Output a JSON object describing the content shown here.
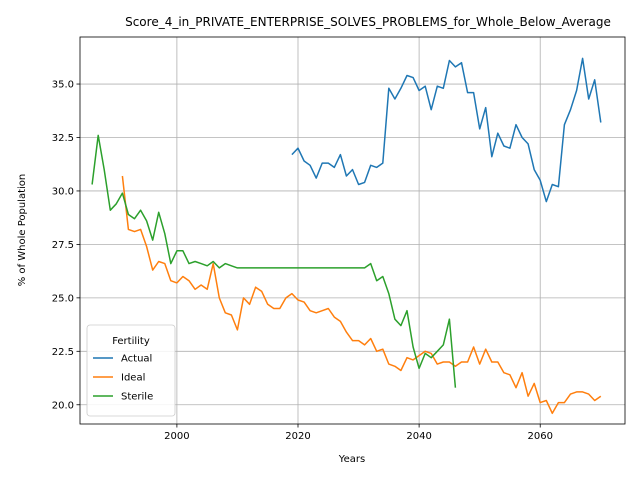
{
  "chart_data": {
    "type": "line",
    "title": "Score_4_in_PRIVATE_ENTERPRISE_SOLVES_PROBLEMS_for_Whole_Below_Average",
    "xlabel": "Years",
    "ylabel": "% of Whole Population",
    "xlim": [
      1984,
      2074
    ],
    "ylim": [
      19.1,
      37.2
    ],
    "xticks": [
      2000,
      2020,
      2040,
      2060
    ],
    "yticks": [
      20.0,
      22.5,
      25.0,
      27.5,
      30.0,
      32.5,
      35.0
    ],
    "grid": true,
    "legend": {
      "title": "Fertility",
      "placement": "lower-left"
    },
    "colors": {
      "Actual": "#1f77b4",
      "Ideal": "#ff7f0e",
      "Sterile": "#2ca02c"
    },
    "series": [
      {
        "name": "Actual",
        "x": [
          2019,
          2020,
          2021,
          2022,
          2023,
          2024,
          2025,
          2026,
          2027,
          2028,
          2029,
          2030,
          2031,
          2032,
          2033,
          2034,
          2035,
          2036,
          2037,
          2038,
          2039,
          2040,
          2041,
          2042,
          2043,
          2044,
          2045,
          2046,
          2047,
          2048,
          2049,
          2050,
          2051,
          2052,
          2053,
          2054,
          2055,
          2056,
          2057,
          2058,
          2059,
          2060,
          2061,
          2062,
          2063,
          2064,
          2065,
          2066,
          2067,
          2068,
          2069,
          2070
        ],
        "y": [
          31.7,
          32.0,
          31.4,
          31.2,
          30.6,
          31.3,
          31.3,
          31.1,
          31.7,
          30.7,
          31.0,
          30.3,
          30.4,
          31.2,
          31.1,
          31.3,
          34.8,
          34.3,
          34.8,
          35.4,
          35.3,
          34.7,
          34.9,
          33.8,
          34.9,
          34.8,
          36.1,
          35.8,
          36.0,
          34.6,
          34.6,
          32.9,
          33.9,
          31.6,
          32.7,
          32.1,
          32.0,
          33.1,
          32.5,
          32.2,
          31.0,
          30.5,
          29.5,
          30.3,
          30.2,
          33.1,
          33.8,
          34.7,
          36.2,
          34.3,
          35.2,
          33.2
        ]
      },
      {
        "name": "Ideal",
        "x": [
          1991,
          1992,
          1993,
          1994,
          1995,
          1996,
          1997,
          1998,
          1999,
          2000,
          2001,
          2002,
          2003,
          2004,
          2005,
          2006,
          2007,
          2008,
          2009,
          2010,
          2011,
          2012,
          2013,
          2014,
          2015,
          2016,
          2017,
          2018,
          2019,
          2020,
          2021,
          2022,
          2023,
          2024,
          2025,
          2026,
          2027,
          2028,
          2029,
          2030,
          2031,
          2032,
          2033,
          2034,
          2035,
          2036,
          2037,
          2038,
          2039,
          2040,
          2041,
          2042,
          2043,
          2044,
          2045,
          2046,
          2047,
          2048,
          2049,
          2050,
          2051,
          2052,
          2053,
          2054,
          2055,
          2056,
          2057,
          2058,
          2059,
          2060,
          2061,
          2062,
          2063,
          2064,
          2065,
          2066,
          2067,
          2068,
          2069,
          2070
        ],
        "y": [
          30.7,
          28.2,
          28.1,
          28.2,
          27.4,
          26.3,
          26.7,
          26.6,
          25.8,
          25.7,
          26.0,
          25.8,
          25.4,
          25.6,
          25.4,
          26.6,
          25.0,
          24.3,
          24.2,
          23.5,
          25.0,
          24.7,
          25.5,
          25.3,
          24.7,
          24.5,
          24.5,
          25.0,
          25.2,
          24.9,
          24.8,
          24.4,
          24.3,
          24.4,
          24.5,
          24.1,
          23.9,
          23.4,
          23.0,
          23.0,
          22.8,
          23.1,
          22.5,
          22.6,
          21.9,
          21.8,
          21.6,
          22.2,
          22.1,
          22.3,
          22.5,
          22.4,
          21.9,
          22.0,
          22.0,
          21.8,
          22.0,
          22.0,
          22.7,
          21.9,
          22.6,
          22.0,
          22.0,
          21.5,
          21.4,
          20.8,
          21.5,
          20.4,
          21.0,
          20.1,
          20.2,
          19.6,
          20.1,
          20.1,
          20.5,
          20.6,
          20.6,
          20.5,
          20.2,
          20.4
        ]
      },
      {
        "name": "Sterile",
        "x": [
          1986,
          1987,
          1988,
          1989,
          1990,
          1991,
          1992,
          1993,
          1994,
          1995,
          1996,
          1997,
          1998,
          1999,
          2000,
          2001,
          2002,
          2003,
          2004,
          2005,
          2006,
          2007,
          2008,
          2009,
          2010,
          2011,
          2012,
          2013,
          2014,
          2015,
          2016,
          2017,
          2018,
          2019,
          2020,
          2021,
          2022,
          2023,
          2024,
          2025,
          2026,
          2027,
          2028,
          2029,
          2030,
          2031,
          2032,
          2033,
          2034,
          2035,
          2036,
          2037,
          2038,
          2039,
          2040,
          2041,
          2042,
          2043,
          2044,
          2045,
          2046
        ],
        "y": [
          30.3,
          32.6,
          31.0,
          29.1,
          29.4,
          29.9,
          28.9,
          28.7,
          29.1,
          28.6,
          27.7,
          29.0,
          28.0,
          26.6,
          27.2,
          27.2,
          26.6,
          26.7,
          26.6,
          26.5,
          26.7,
          26.4,
          26.6,
          26.5,
          26.4,
          26.4,
          26.4,
          26.4,
          26.4,
          26.4,
          26.4,
          26.4,
          26.4,
          26.4,
          26.4,
          26.4,
          26.4,
          26.4,
          26.4,
          26.4,
          26.4,
          26.4,
          26.4,
          26.4,
          26.4,
          26.4,
          26.6,
          25.8,
          26.0,
          25.2,
          24.0,
          23.7,
          24.4,
          22.7,
          21.7,
          22.4,
          22.2,
          22.5,
          22.8,
          24.0,
          20.8
        ]
      }
    ]
  }
}
